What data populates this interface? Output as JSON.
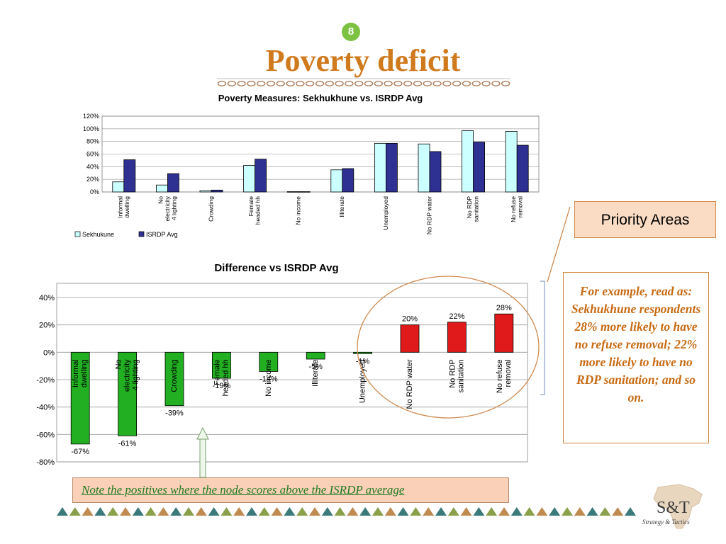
{
  "slide": {
    "page_number": "8",
    "title": "Poverty deficit"
  },
  "callouts": {
    "priority_areas": "Priority Areas",
    "example_text": "For example, read as: Sekhukhune respondents 28% more likely to have no refuse removal; 22% more likely to have no RDP sanitation; and so on.",
    "note": "Note the positives where the node scores above the ISRDP average"
  },
  "logo": {
    "name": "S&T",
    "tagline": "Strategy & Tactics"
  },
  "colors": {
    "title": "#d07a1e",
    "sekhukhune": "#ccffff",
    "isrdp": "#2e3192",
    "negative_bar": "#22b022",
    "positive_bar": "#e01a1a",
    "highlight_ellipse": "#d08a50"
  },
  "chart_data": [
    {
      "type": "bar",
      "title": "Poverty Measures: Sekhukhune vs. ISRDP Avg",
      "categories": [
        "Informal dwelling",
        "No electricity 4 lighting",
        "Crowding",
        "Female headed hh",
        "No income",
        "Illiterate",
        "Unemployed",
        "No RDP water",
        "No RDP sanitation",
        "No refuse removal"
      ],
      "series": [
        {
          "name": "Sekhukune",
          "values": [
            0.16,
            0.11,
            0.02,
            0.42,
            0.005,
            0.35,
            0.77,
            0.76,
            0.97,
            0.96
          ]
        },
        {
          "name": "ISRDP Avg",
          "values": [
            0.51,
            0.29,
            0.03,
            0.52,
            0.005,
            0.37,
            0.77,
            0.64,
            0.79,
            0.74
          ]
        }
      ],
      "ylim": [
        0,
        1.2
      ],
      "yticks": [
        "0%",
        "20%",
        "40%",
        "60%",
        "80%",
        "100%",
        "120%"
      ],
      "grid": true,
      "legend": "bottom-left"
    },
    {
      "type": "bar",
      "title": "Difference vs ISRDP Avg",
      "categories": [
        "Informal dwelling",
        "No electricity 4 lighting",
        "Crowding",
        "Female headed hh",
        "No income",
        "Illiterate",
        "Unemployed",
        "No RDP water",
        "No RDP sanitation",
        "No refuse removal"
      ],
      "values": [
        -0.67,
        -0.61,
        -0.39,
        -0.19,
        -0.14,
        -0.05,
        -0.01,
        0.2,
        0.22,
        0.28
      ],
      "data_labels": [
        "-67%",
        "-61%",
        "-39%",
        "-19%",
        "-14%",
        "-5%",
        "-1%",
        "20%",
        "22%",
        "28%"
      ],
      "ylim": [
        -0.8,
        0.4
      ],
      "yticks": [
        "-80%",
        "-60%",
        "-40%",
        "-20%",
        "0%",
        "20%",
        "40%"
      ],
      "grid": true,
      "legend": "none"
    }
  ]
}
